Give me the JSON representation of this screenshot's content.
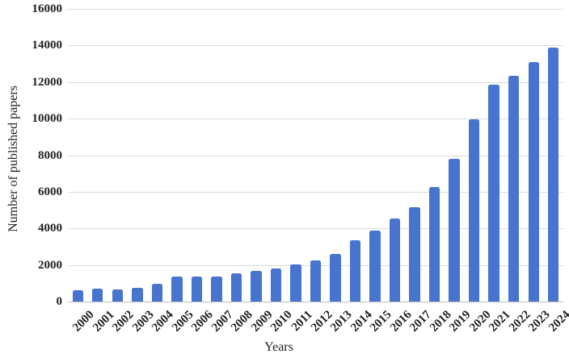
{
  "chart_data": {
    "type": "bar",
    "title": "",
    "xlabel": "Years",
    "ylabel": "Number of published papers",
    "categories": [
      "2000",
      "2001",
      "2002",
      "2003",
      "2004",
      "2005",
      "2006",
      "2007",
      "2008",
      "2009",
      "2010",
      "2011",
      "2012",
      "2013",
      "2014",
      "2015",
      "2016",
      "2017",
      "2018",
      "2019",
      "2020",
      "2021",
      "2022",
      "2023",
      "2024"
    ],
    "values": [
      600,
      690,
      640,
      730,
      950,
      1380,
      1350,
      1360,
      1530,
      1660,
      1800,
      2030,
      2260,
      2580,
      3330,
      3890,
      4550,
      5150,
      6250,
      7790,
      9960,
      11850,
      12350,
      13100,
      13900
    ],
    "ylim": [
      0,
      16000
    ],
    "ytick_interval": 2000,
    "ytick_labels": [
      "0",
      "2000",
      "4000",
      "6000",
      "8000",
      "10000",
      "12000",
      "14000",
      "16000"
    ],
    "grid": true,
    "legend": false,
    "bar_color": "#4674CE",
    "gridline_color": "#DBDBDB",
    "axis_line_color": "#BDBDBD",
    "text_color": "#1F1F1F",
    "background_color": "#FFFFFF"
  }
}
